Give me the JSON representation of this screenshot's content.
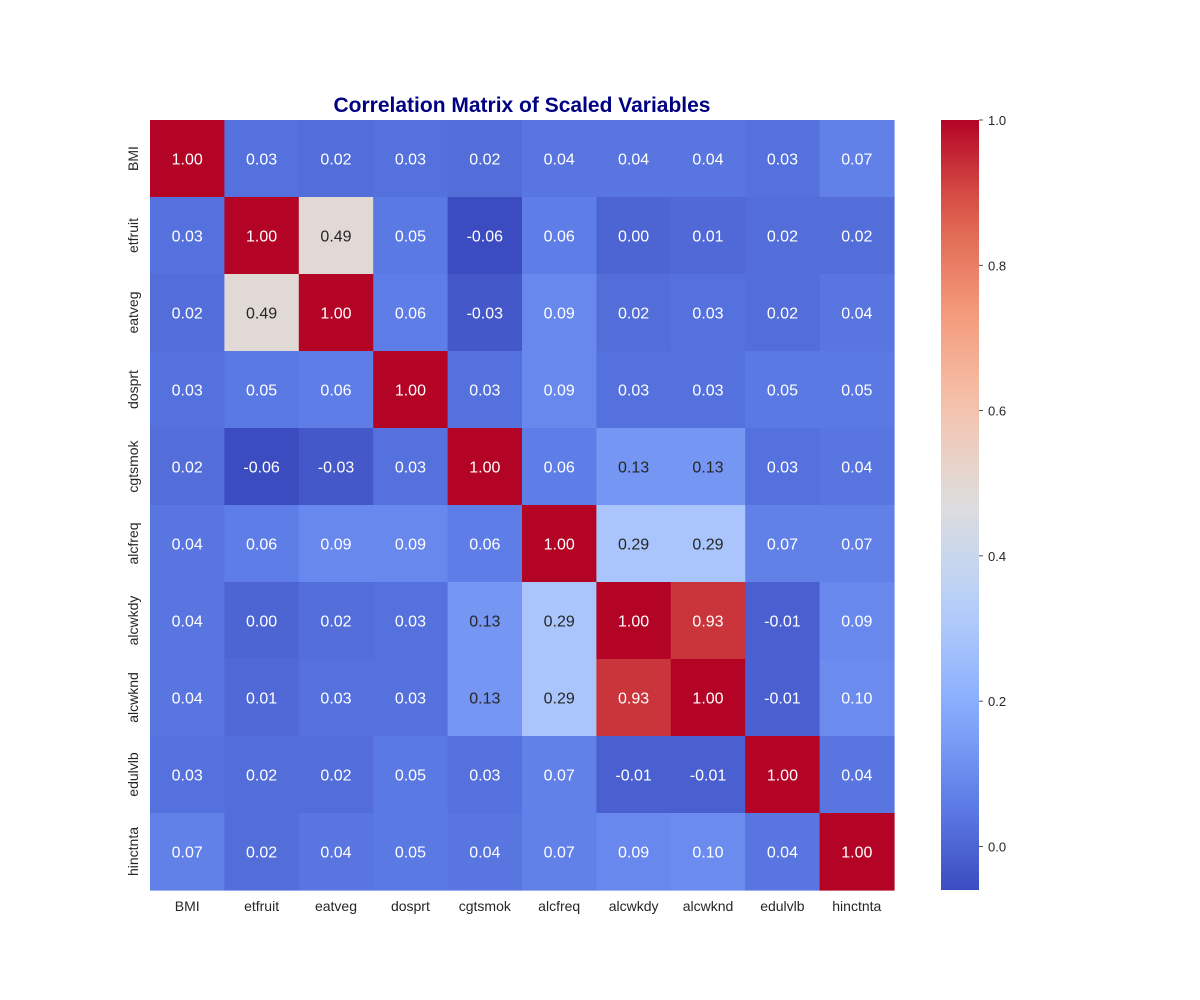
{
  "chart_data": {
    "type": "heatmap",
    "title": "Correlation Matrix of Scaled Variables",
    "labels": [
      "BMI",
      "etfruit",
      "eatveg",
      "dosprt",
      "cgtsmok",
      "alcfreq",
      "alcwkdy",
      "alcwknd",
      "edulvlb",
      "hinctnta"
    ],
    "matrix": [
      [
        1.0,
        0.03,
        0.02,
        0.03,
        0.02,
        0.04,
        0.04,
        0.04,
        0.03,
        0.07
      ],
      [
        0.03,
        1.0,
        0.49,
        0.05,
        -0.06,
        0.06,
        0.0,
        0.01,
        0.02,
        0.02
      ],
      [
        0.02,
        0.49,
        1.0,
        0.06,
        -0.03,
        0.09,
        0.02,
        0.03,
        0.02,
        0.04
      ],
      [
        0.03,
        0.05,
        0.06,
        1.0,
        0.03,
        0.09,
        0.03,
        0.03,
        0.05,
        0.05
      ],
      [
        0.02,
        -0.06,
        -0.03,
        0.03,
        1.0,
        0.06,
        0.13,
        0.13,
        0.03,
        0.04
      ],
      [
        0.04,
        0.06,
        0.09,
        0.09,
        0.06,
        1.0,
        0.29,
        0.29,
        0.07,
        0.07
      ],
      [
        0.04,
        0.0,
        0.02,
        0.03,
        0.13,
        0.29,
        1.0,
        0.93,
        -0.01,
        0.09
      ],
      [
        0.04,
        0.01,
        0.03,
        0.03,
        0.13,
        0.29,
        0.93,
        1.0,
        -0.01,
        0.1
      ],
      [
        0.03,
        0.02,
        0.02,
        0.05,
        0.03,
        0.07,
        -0.01,
        -0.01,
        1.0,
        0.04
      ],
      [
        0.07,
        0.02,
        0.04,
        0.05,
        0.04,
        0.07,
        0.09,
        0.1,
        0.04,
        1.0
      ]
    ],
    "value_format": "0.00",
    "colormap": "coolwarm",
    "vmin": -0.06,
    "vmax": 1.0,
    "colorbar_ticks": [
      "0.0",
      "0.2",
      "0.4",
      "0.6",
      "0.8",
      "1.0"
    ],
    "title_color": "#000080"
  }
}
